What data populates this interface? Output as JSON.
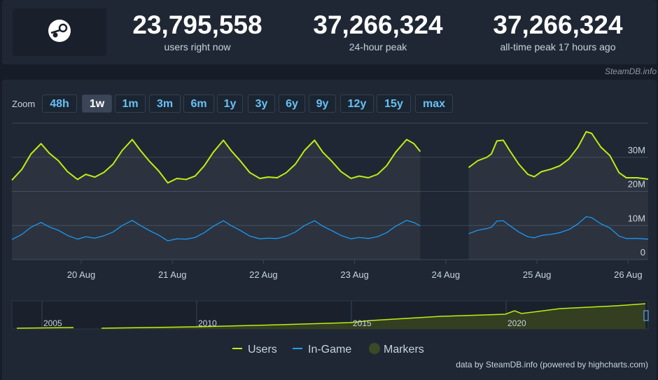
{
  "header": {
    "stats": [
      {
        "value": "23,795,558",
        "label": "users right now"
      },
      {
        "value": "37,266,324",
        "label": "24-hour peak"
      },
      {
        "value": "37,266,324",
        "label": "all-time peak 17 hours ago"
      }
    ],
    "credit": "SteamDB.info"
  },
  "zoom": {
    "label": "Zoom",
    "buttons": [
      "48h",
      "1w",
      "1m",
      "3m",
      "6m",
      "1y",
      "3y",
      "6y",
      "9y",
      "12y",
      "15y",
      "max"
    ],
    "active": "1w"
  },
  "chart_data": {
    "type": "line",
    "x": [
      19.24,
      19.35,
      19.45,
      19.56,
      19.65,
      19.75,
      19.85,
      19.96,
      20.05,
      20.15,
      20.25,
      20.35,
      20.45,
      20.56,
      20.65,
      20.75,
      20.85,
      20.95,
      21.05,
      21.15,
      21.25,
      21.35,
      21.45,
      21.56,
      21.65,
      21.75,
      21.85,
      21.96,
      22.05,
      22.15,
      22.25,
      22.35,
      22.45,
      22.56,
      22.65,
      22.75,
      22.85,
      22.96,
      23.05,
      23.15,
      23.25,
      23.35,
      23.45,
      23.57,
      23.65,
      23.72,
      24.0,
      24.25,
      24.35,
      24.45,
      24.5,
      24.56,
      24.63,
      24.7,
      24.8,
      24.9,
      24.97,
      25.05,
      25.15,
      25.25,
      25.35,
      25.45,
      25.54,
      25.6,
      25.7,
      25.8,
      25.9,
      25.98,
      26.1,
      26.22
    ],
    "series": [
      {
        "name": "Users",
        "color": "#beee11",
        "values": [
          23300000,
          26500000,
          31000000,
          34000000,
          31200000,
          29000000,
          25800000,
          23500000,
          25000000,
          24200000,
          25600000,
          28000000,
          32000000,
          35200000,
          32000000,
          28800000,
          26000000,
          22500000,
          23800000,
          23500000,
          24500000,
          27500000,
          31500000,
          35000000,
          31800000,
          28800000,
          25500000,
          23800000,
          24200000,
          24000000,
          25500000,
          28000000,
          32000000,
          35000000,
          31500000,
          28800000,
          25800000,
          23800000,
          24500000,
          24000000,
          25000000,
          27500000,
          31500000,
          35200000,
          34000000,
          31700000,
          null,
          27000000,
          29000000,
          30000000,
          31000000,
          34800000,
          35000000,
          32000000,
          28000000,
          25000000,
          24300000,
          25800000,
          26500000,
          27500000,
          29500000,
          33000000,
          37500000,
          37000000,
          33000000,
          30500000,
          25500000,
          24000000,
          24000000,
          23600000
        ]
      },
      {
        "name": "In-Game",
        "color": "#1a9fff",
        "values": [
          5900000,
          7400000,
          9500000,
          10900000,
          9600000,
          8600000,
          7100000,
          6000000,
          6700000,
          6300000,
          7000000,
          8100000,
          10000000,
          11500000,
          10000000,
          8500000,
          7200000,
          5500000,
          6100000,
          6000000,
          6500000,
          7900000,
          9800000,
          11400000,
          9900000,
          8500000,
          6900000,
          6100000,
          6300000,
          6200000,
          6900000,
          8100000,
          10000000,
          11400000,
          9800000,
          8500000,
          7100000,
          6100000,
          6500000,
          6200000,
          6700000,
          7900000,
          9800000,
          11500000,
          10900000,
          9900000,
          null,
          7600000,
          8600000,
          9100000,
          9500000,
          11300000,
          11400000,
          10000000,
          8100000,
          6700000,
          6400000,
          7100000,
          7400000,
          7900000,
          8800000,
          10500000,
          12600000,
          12300000,
          10500000,
          9300000,
          6900000,
          6200000,
          6200000,
          6000000
        ]
      }
    ],
    "markers": {
      "name": "Markers",
      "color": "#3b4a26"
    },
    "xlim": [
      19.24,
      26.22
    ],
    "xticks": [
      {
        "value": 20,
        "label": "20 Aug"
      },
      {
        "value": 21,
        "label": "21 Aug"
      },
      {
        "value": 22,
        "label": "22 Aug"
      },
      {
        "value": 23,
        "label": "23 Aug"
      },
      {
        "value": 24,
        "label": "24 Aug"
      },
      {
        "value": 25,
        "label": "25 Aug"
      },
      {
        "value": 26,
        "label": "26 Aug"
      }
    ],
    "ylim": [
      0,
      40000000
    ],
    "yticks": [
      {
        "value": 0,
        "label": "0"
      },
      {
        "value": 10000000,
        "label": "10M"
      },
      {
        "value": 20000000,
        "label": "20M"
      },
      {
        "value": 30000000,
        "label": "30M"
      }
    ],
    "grid": true
  },
  "navigator": {
    "labels": [
      "2005",
      "2010",
      "2015",
      "2020"
    ]
  },
  "footer": "data by SteamDB.info (powered by highcharts.com)"
}
